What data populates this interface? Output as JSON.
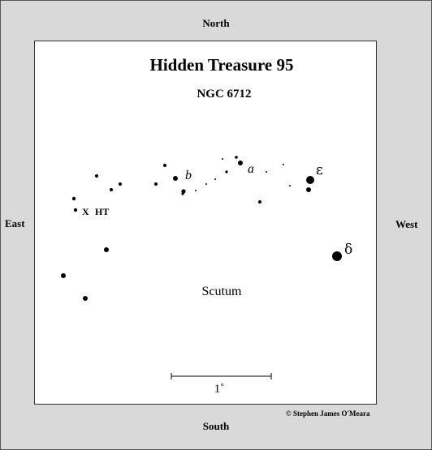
{
  "directions": {
    "north": "North",
    "south": "South",
    "east": "East",
    "west": "West"
  },
  "chart": {
    "title": "Hidden Treasure 95",
    "subtitle": "NGC 6712",
    "constellation": "Scutum",
    "scale_label": "1˚",
    "target_marker": "X",
    "target_label": "HT"
  },
  "star_labels": {
    "a": "a",
    "b": "b",
    "epsilon": "ε",
    "delta": "δ"
  },
  "credit": "© Stephen James O'Meara"
}
